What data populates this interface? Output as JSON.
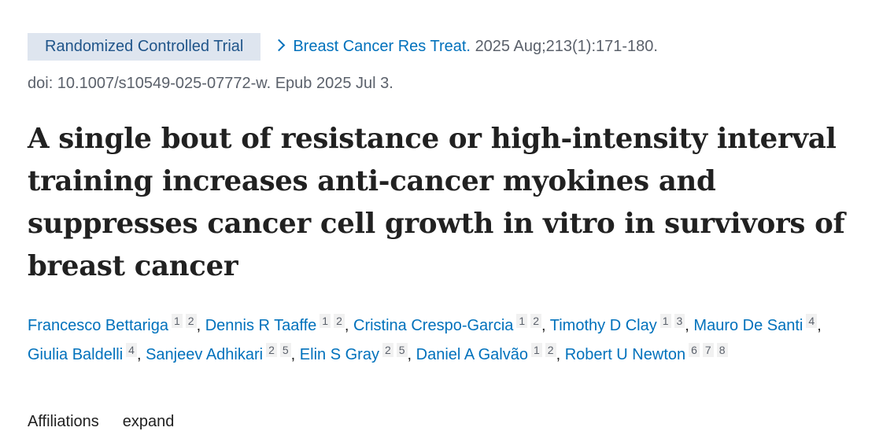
{
  "header": {
    "badge": "Randomized Controlled Trial",
    "journal": "Breast Cancer Res Treat.",
    "citation": "2025 Aug;213(1):171-180.",
    "doi": "doi: 10.1007/s10549-025-07772-w. Epub 2025 Jul 3."
  },
  "title": "A single bout of resistance or high-intensity interval training increases anti-cancer myokines and suppresses cancer cell growth in vitro in survivors of breast cancer",
  "authors": [
    {
      "name": "Francesco Bettariga",
      "affiliations": [
        1,
        2
      ]
    },
    {
      "name": "Dennis R Taaffe",
      "affiliations": [
        1,
        2
      ]
    },
    {
      "name": "Cristina Crespo-Garcia",
      "affiliations": [
        1,
        2
      ]
    },
    {
      "name": "Timothy D Clay",
      "affiliations": [
        1,
        3
      ]
    },
    {
      "name": "Mauro De Santi",
      "affiliations": [
        4
      ]
    },
    {
      "name": "Giulia Baldelli",
      "affiliations": [
        4
      ]
    },
    {
      "name": "Sanjeev Adhikari",
      "affiliations": [
        2,
        5
      ]
    },
    {
      "name": "Elin S Gray",
      "affiliations": [
        2,
        5
      ]
    },
    {
      "name": "Daniel A Galvão",
      "affiliations": [
        1,
        2
      ]
    },
    {
      "name": "Robert U Newton",
      "affiliations": [
        6,
        7,
        8
      ]
    }
  ],
  "affiliations_toggle": {
    "label": "Affiliations",
    "action": "expand"
  }
}
